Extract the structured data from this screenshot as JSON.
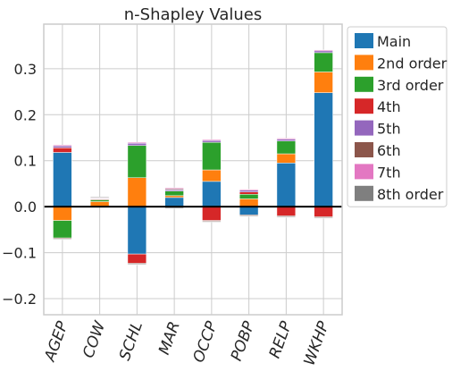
{
  "chart_data": {
    "type": "bar",
    "stacked": true,
    "title": "n-Shapley Values",
    "xlabel": "",
    "ylabel": "",
    "ylim": [
      -0.235,
      0.397
    ],
    "yticks": [
      -0.2,
      -0.1,
      0.0,
      0.1,
      0.2,
      0.3
    ],
    "ytick_labels": [
      "−0.2",
      "−0.1",
      "0.0",
      "0.1",
      "0.2",
      "0.3"
    ],
    "grid": true,
    "zero_line": true,
    "legend_position": "outside-right",
    "categories": [
      "AGEP",
      "COW",
      "SCHL",
      "MAR",
      "OCCP",
      "POBP",
      "RELP",
      "WKHP"
    ],
    "series": [
      {
        "name": "Main",
        "color": "#1f77b4",
        "values": [
          0.118,
          0.0,
          -0.103,
          0.02,
          0.055,
          -0.018,
          0.095,
          0.248
        ]
      },
      {
        "name": "2nd order",
        "color": "#ff7f0e",
        "values": [
          -0.03,
          0.011,
          0.063,
          0.004,
          0.025,
          0.017,
          0.02,
          0.045
        ]
      },
      {
        "name": "3rd order",
        "color": "#2ca02c",
        "values": [
          -0.038,
          0.004,
          0.07,
          0.01,
          0.06,
          0.01,
          0.028,
          0.042
        ]
      },
      {
        "name": "4th",
        "color": "#d62728",
        "values": [
          0.01,
          0.002,
          -0.02,
          -0.002,
          -0.03,
          0.005,
          -0.02,
          -0.022
        ]
      },
      {
        "name": "5th",
        "color": "#9467bd",
        "values": [
          0.004,
          0.001,
          0.005,
          0.003,
          0.004,
          0.004,
          0.004,
          0.004
        ]
      },
      {
        "name": "6th",
        "color": "#8c564b",
        "values": [
          -0.002,
          0.001,
          -0.002,
          0.002,
          -0.002,
          -0.002,
          -0.002,
          -0.002
        ]
      },
      {
        "name": "7th",
        "color": "#e377c2",
        "values": [
          0.002,
          0.001,
          0.002,
          0.002,
          0.002,
          0.002,
          0.002,
          0.002
        ]
      },
      {
        "name": "8th order",
        "color": "#7f7f7f",
        "values": [
          -0.001,
          0.001,
          -0.001,
          -0.002,
          -0.001,
          -0.001,
          -0.001,
          -0.001
        ]
      }
    ]
  }
}
